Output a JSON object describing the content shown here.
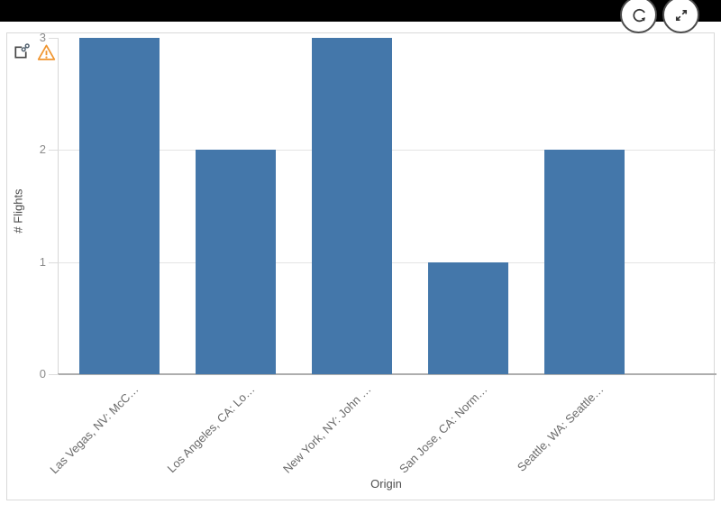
{
  "topbar": {
    "color": "#000000"
  },
  "toolbar": {
    "refresh_button": {
      "icon": "refresh-icon"
    },
    "fullscreen_button": {
      "icon": "fullscreen-expand-icon"
    }
  },
  "card": {
    "share_icon": "shared-object-link-icon",
    "warning_icon": "warning-triangle-icon",
    "warning_color": "#f0942d"
  },
  "chart_data": {
    "type": "bar",
    "title": "",
    "categories": [
      "Las Vegas, NV: McC…",
      "Los Angeles, CA: Lo…",
      "New York, NY: John …",
      "San Jose, CA: Norm…",
      "Seattle, WA: Seattle…"
    ],
    "values": [
      3,
      2,
      3,
      1,
      2
    ],
    "xlabel": "Origin",
    "ylabel": "# Flights",
    "ylim": [
      0,
      3
    ],
    "yticks": [
      0,
      1,
      2,
      3
    ],
    "gridline_values": [
      1,
      2
    ],
    "bar_color": "#4477aa",
    "grid": true,
    "legend": false
  }
}
